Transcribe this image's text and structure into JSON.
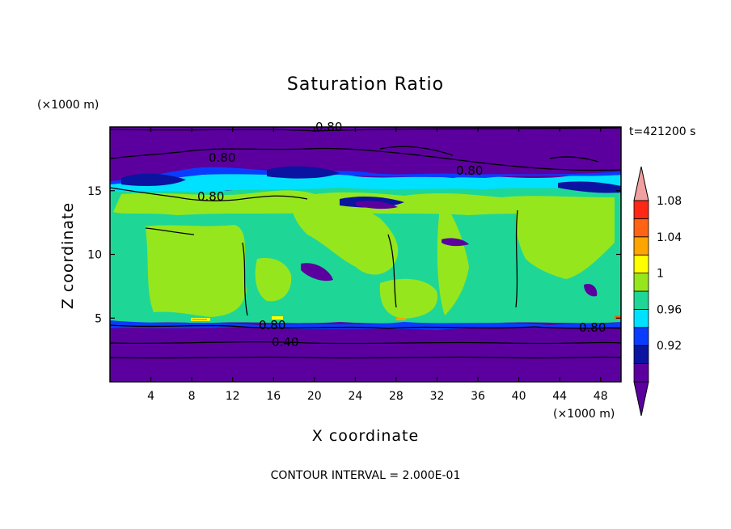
{
  "chart_data": {
    "type": "heatmap",
    "title": "Saturation Ratio",
    "xlabel": "X coordinate",
    "ylabel": "Z coordinate",
    "x_unit": "(×1000 m)",
    "y_unit": "(×1000 m)",
    "time_label": "t=421200 s",
    "footer": "CONTOUR INTERVAL = 2.000E-01",
    "xlim": [
      0,
      50
    ],
    "ylim": [
      0,
      20
    ],
    "x_ticks": [
      "4",
      "8",
      "12",
      "16",
      "20",
      "24",
      "28",
      "32",
      "36",
      "40",
      "44",
      "48"
    ],
    "y_ticks": [
      "5",
      "10",
      "15"
    ],
    "colorbar": {
      "levels": [
        0.9,
        0.92,
        0.94,
        0.96,
        0.98,
        1.0,
        1.02,
        1.04,
        1.06,
        1.08,
        1.1
      ],
      "tick_labels": [
        "0.92",
        "0.96",
        "1",
        "1.04",
        "1.08"
      ],
      "colors": [
        "#5b009e",
        "#0a14a0",
        "#0a3cff",
        "#00e1ff",
        "#1ed796",
        "#96e61e",
        "#ffff00",
        "#ffa500",
        "#ff6414",
        "#ff2814",
        "#f0a0a0"
      ]
    },
    "contour_labels": [
      "0.80",
      "0.80",
      "0.80",
      "0.80",
      "0.80",
      "0.40"
    ],
    "layers_z": {
      "surface_dry_layer": [
        0,
        5
      ],
      "saturated_layer": [
        5,
        15
      ],
      "upper_dry_layer": [
        15,
        20
      ]
    }
  }
}
